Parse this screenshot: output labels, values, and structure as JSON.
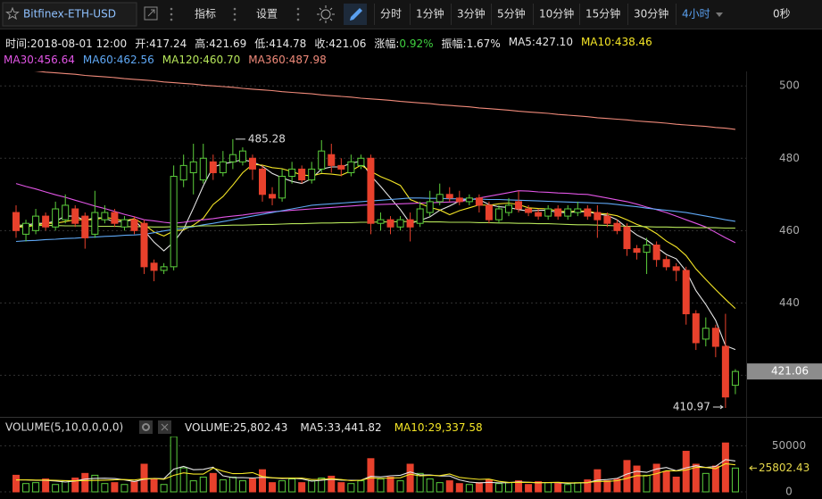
{
  "toolbar": {
    "symbol": "Bitfinex-ETH-USD",
    "indicators": "指标",
    "settings": "设置",
    "intervals": [
      "分时",
      "1分钟",
      "3分钟",
      "5分钟",
      "10分钟",
      "15分钟",
      "30分钟"
    ],
    "active_interval": "4小时",
    "countdown": "0秒"
  },
  "info": {
    "time_label": "时间:",
    "time": "2018-08-01 12:00",
    "open_label": "开:",
    "high_label": "高:",
    "low_label": "低:",
    "close_label": "收:",
    "change_label": "涨幅:",
    "change": "0.92%",
    "amplitude_label": "振幅:",
    "amplitude": "1.67%",
    "ma_labels": [
      "MA5:427.10",
      "MA10:438.46",
      "MA30:456.64",
      "MA60:462.56",
      "MA120:460.70",
      "MA360:487.98"
    ]
  },
  "volume_header": {
    "title": "VOLUME(5,10,0,0,0,0)",
    "items": [
      "VOLUME:25,802.43",
      "MA5:33,441.82",
      "MA10:29,337.58"
    ]
  },
  "chart_data": {
    "type": "candlestick",
    "up_color": "#5ccf3c",
    "down_color": "#e8412c",
    "ylim": [
      409,
      504
    ],
    "yticks": [
      420,
      440,
      460,
      480,
      500
    ],
    "grid": true,
    "open": [
      465,
      459,
      460,
      464,
      461,
      463,
      466,
      464,
      459,
      463,
      465,
      461,
      463,
      462,
      451,
      449,
      450,
      474,
      476,
      474,
      479,
      476,
      479,
      479,
      480,
      477,
      470,
      469,
      475,
      477,
      474,
      477,
      481,
      478,
      476,
      478,
      480,
      462,
      463,
      461,
      463,
      462,
      465,
      468,
      470,
      469,
      468,
      469,
      467,
      463,
      465,
      468,
      466,
      465,
      464,
      466,
      464,
      465,
      466,
      465,
      464,
      462,
      461,
      455,
      454,
      456,
      452,
      450,
      449,
      437,
      430,
      433,
      428,
      417.24
    ],
    "high": [
      467,
      463,
      466,
      465,
      468,
      470,
      467,
      465,
      471,
      467,
      466,
      464,
      464,
      463,
      452,
      451,
      478,
      481,
      484,
      484,
      481,
      482,
      485.28,
      483,
      481,
      478,
      472,
      477,
      479,
      478,
      479,
      485,
      484,
      480,
      481,
      481,
      481,
      465,
      464,
      464,
      465,
      468,
      471,
      473,
      472,
      471,
      470,
      470,
      468,
      467,
      469,
      471,
      467,
      466,
      467,
      467,
      467,
      468,
      467,
      467,
      465,
      463,
      462,
      456,
      458,
      457,
      453,
      451,
      450,
      438,
      436,
      434,
      437,
      421.69
    ],
    "low": [
      458,
      457,
      459,
      460,
      460,
      462,
      461,
      455,
      458,
      462,
      461,
      460,
      459,
      448,
      446,
      448,
      449,
      472,
      470,
      473,
      474,
      475,
      477,
      478,
      474,
      468,
      467,
      468,
      473,
      473,
      473,
      476,
      476,
      475,
      475,
      477,
      459,
      460,
      459,
      460,
      457,
      461,
      464,
      467,
      468,
      467,
      467,
      465,
      462,
      462,
      464,
      465,
      464,
      463,
      463,
      463,
      463,
      464,
      463,
      458,
      461,
      459,
      453,
      452,
      448,
      450,
      449,
      446,
      434,
      427,
      428,
      425,
      410.97,
      414.78
    ],
    "close": [
      460,
      462,
      464,
      461,
      466,
      467,
      462,
      458,
      465,
      465,
      462,
      463,
      460,
      450,
      449,
      450,
      475,
      478,
      479,
      480,
      476,
      479,
      481,
      482,
      477,
      470,
      469,
      475,
      477,
      474,
      477,
      482,
      478,
      477,
      479,
      480,
      462,
      463,
      461,
      463,
      461,
      466,
      468,
      470,
      469,
      468,
      469,
      467,
      463,
      466,
      467,
      466,
      465,
      464,
      466,
      464,
      466,
      466,
      464,
      463,
      462,
      460,
      455,
      454,
      456,
      452,
      450,
      449,
      437,
      429,
      433,
      428,
      414,
      421.06
    ],
    "series": [
      {
        "color": "#e6e6e6",
        "values": [
          461,
          461.5,
          462,
          462,
          462.6,
          464,
          464,
          462.8,
          463.6,
          463.4,
          462.4,
          462.6,
          463,
          460,
          456.8,
          454.4,
          456.8,
          460.4,
          466.2,
          472.4,
          477.6,
          478.4,
          479,
          479.6,
          479,
          477.8,
          475.8,
          474.6,
          473.6,
          473,
          474.4,
          477,
          477.6,
          477.6,
          478.6,
          479.2,
          475.2,
          472.2,
          469,
          465.8,
          462,
          462.8,
          463.8,
          465.6,
          466.8,
          468.2,
          468.8,
          468.6,
          467.2,
          466.6,
          466.4,
          465.8,
          465.4,
          465.6,
          465.6,
          465,
          465,
          465.2,
          465.2,
          464.6,
          464.2,
          463,
          460.8,
          458.8,
          457.4,
          455.4,
          453.4,
          452.2,
          448.8,
          443.4,
          439.6,
          435.2,
          428.2,
          427.1
        ]
      },
      {
        "color": "#f5e626",
        "values": [
          461,
          461,
          461.5,
          462,
          462,
          462.5,
          463,
          463,
          463,
          463.7,
          463.2,
          462.7,
          463.3,
          461.7,
          459.6,
          458.5,
          459.9,
          460.2,
          461.5,
          463.4,
          467.2,
          469.4,
          472.6,
          476,
          478.3,
          478.1,
          477.4,
          477.1,
          476.3,
          475.4,
          475.1,
          475.8,
          475.6,
          475.3,
          476.5,
          478.1,
          476.4,
          474.9,
          473.8,
          472.5,
          468.6,
          467.5,
          466.4,
          465.7,
          464.4,
          465.5,
          466.3,
          467.1,
          467,
          467.4,
          467.6,
          467.2,
          466.3,
          466.1,
          466,
          465.4,
          465.2,
          465.4,
          465.4,
          464.8,
          464.6,
          464.1,
          463,
          461.7,
          460.8,
          459.2,
          457.1,
          455.5,
          453.1,
          449.4,
          446.5,
          443.7,
          441,
          438.46
        ]
      },
      {
        "color": "#e255e6",
        "values": [
          473,
          472.2,
          471.5,
          470.7,
          469.9,
          469.2,
          468.4,
          467.6,
          466.8,
          466.1,
          465.3,
          464.5,
          463.8,
          463,
          462.7,
          462.3,
          462,
          462.3,
          462.7,
          463,
          463.3,
          463.7,
          464,
          464.3,
          464.7,
          465,
          465.2,
          465.4,
          465.6,
          465.8,
          466,
          466.2,
          466.4,
          466.6,
          466.8,
          467,
          467.1,
          467.2,
          467.3,
          467.4,
          467.5,
          467.6,
          467.7,
          467.8,
          467.9,
          468,
          468.5,
          469,
          469.5,
          470,
          470.5,
          471,
          470.9,
          470.7,
          470.6,
          470.4,
          470.3,
          470.1,
          470,
          469.5,
          469,
          468.5,
          468,
          467.3,
          466.5,
          465.8,
          465,
          464,
          463,
          462,
          461,
          459.5,
          458,
          456.64
        ]
      },
      {
        "color": "#5fa8f5",
        "values": [
          457,
          457.2,
          457.3,
          457.5,
          457.6,
          457.8,
          457.9,
          458.1,
          458.2,
          458.4,
          458.5,
          458.7,
          458.8,
          459,
          459.4,
          459.9,
          460.3,
          460.7,
          461.1,
          461.6,
          462,
          462.5,
          463,
          463.5,
          464,
          464.5,
          465,
          465.5,
          466,
          466.5,
          467,
          467.2,
          467.4,
          467.6,
          467.8,
          468,
          468.2,
          468.4,
          468.6,
          468.8,
          469,
          469,
          468.9,
          468.9,
          468.8,
          468.8,
          468.7,
          468.7,
          468.6,
          468.6,
          468.5,
          468.4,
          468.3,
          468.2,
          468.1,
          468,
          467.9,
          467.8,
          467.7,
          467.6,
          467.5,
          467.2,
          466.9,
          466.6,
          466.2,
          465.9,
          465.6,
          465.3,
          465,
          464.5,
          464,
          463.5,
          463,
          462.56
        ]
      },
      {
        "color": "#b6e65a",
        "values": [
          461.5,
          461.5,
          461.4,
          461.4,
          461.4,
          461.3,
          461.3,
          461.3,
          461.2,
          461.2,
          461.2,
          461.1,
          461.1,
          461.1,
          461,
          461,
          461.1,
          461.1,
          461.2,
          461.3,
          461.3,
          461.4,
          461.5,
          461.5,
          461.6,
          461.7,
          461.7,
          461.8,
          461.9,
          461.9,
          462,
          462.1,
          462.1,
          462.2,
          462.2,
          462.3,
          462.3,
          462.4,
          462.4,
          462.5,
          462.5,
          462.5,
          462.4,
          462.4,
          462.3,
          462.3,
          462.3,
          462.2,
          462.2,
          462.1,
          462.1,
          462,
          462,
          461.9,
          461.9,
          461.8,
          461.7,
          461.6,
          461.6,
          461.5,
          461.4,
          461.3,
          461.2,
          461.2,
          461.1,
          461,
          461,
          460.9,
          460.9,
          460.8,
          460.8,
          460.8,
          460.7,
          460.7
        ]
      },
      {
        "color": "#f08a7a",
        "values": [
          504.5,
          504.3,
          504.1,
          503.8,
          503.6,
          503.4,
          503.2,
          502.9,
          502.7,
          502.5,
          502.3,
          502.0,
          501.8,
          501.6,
          501.4,
          501.1,
          500.9,
          500.7,
          500.5,
          500.2,
          500.0,
          499.8,
          499.6,
          499.3,
          499.1,
          498.9,
          498.7,
          498.4,
          498.2,
          498.0,
          497.8,
          497.5,
          497.3,
          497.1,
          496.9,
          496.6,
          496.4,
          496.2,
          496.0,
          495.7,
          495.5,
          495.3,
          495.1,
          494.8,
          494.6,
          494.4,
          494.2,
          493.9,
          493.7,
          493.5,
          493.3,
          493.0,
          492.8,
          492.6,
          492.4,
          492.1,
          491.9,
          491.7,
          491.5,
          491.2,
          491.0,
          490.8,
          490.6,
          490.3,
          490.1,
          489.9,
          489.7,
          489.4,
          489.2,
          489.0,
          488.8,
          488.5,
          488.3,
          487.98
        ]
      }
    ],
    "volume": {
      "ylim": [
        0,
        60000
      ],
      "yticks": [
        0,
        50000
      ],
      "values": [
        18000,
        9000,
        10000,
        14000,
        8000,
        12000,
        15000,
        20000,
        18000,
        9000,
        10000,
        8000,
        11000,
        30000,
        14000,
        8000,
        60000,
        26000,
        12000,
        16000,
        20000,
        13000,
        16000,
        12000,
        14000,
        24000,
        10000,
        12000,
        14000,
        10000,
        12000,
        15000,
        17000,
        10000,
        9000,
        12000,
        36000,
        14000,
        16000,
        12000,
        30000,
        20000,
        14000,
        10000,
        12000,
        9000,
        8000,
        10000,
        13000,
        9000,
        10000,
        12000,
        8000,
        11000,
        10000,
        9000,
        8000,
        10000,
        13000,
        24000,
        12000,
        14000,
        34000,
        28000,
        18000,
        30000,
        22000,
        16000,
        44000,
        30000,
        20000,
        28000,
        53000,
        25802.43
      ],
      "series": [
        {
          "color": "#e6e6e6",
          "values": [
            13000,
            13000,
            12500,
            12500,
            11800,
            10600,
            11800,
            13800,
            14600,
            14800,
            14400,
            13000,
            11200,
            13600,
            14600,
            14200,
            24600,
            27600,
            24000,
            24400,
            26800,
            17400,
            15400,
            15400,
            15000,
            15800,
            15200,
            14400,
            14800,
            14000,
            11600,
            12600,
            13600,
            12800,
            12600,
            12600,
            16800,
            16200,
            17400,
            18000,
            21600,
            18400,
            18400,
            17200,
            17200,
            13000,
            10600,
            9800,
            10400,
            9800,
            10000,
            10800,
            10400,
            10000,
            10200,
            10000,
            9200,
            9600,
            10000,
            12800,
            13400,
            14600,
            19400,
            22400,
            21200,
            24800,
            26400,
            22800,
            26000,
            28400,
            26400,
            27600,
            35000,
            33441.82
          ]
        },
        {
          "color": "#f5e626",
          "values": [
            13000,
            13000,
            12800,
            12800,
            12500,
            12200,
            12000,
            12200,
            12400,
            12700,
            13100,
            13400,
            12900,
            14200,
            14500,
            13600,
            17900,
            20600,
            19300,
            19300,
            25700,
            22500,
            19700,
            19900,
            20900,
            16600,
            15300,
            14900,
            14900,
            14900,
            13400,
            13500,
            14200,
            13400,
            12100,
            12600,
            15200,
            14500,
            15000,
            15300,
            19200,
            17300,
            17900,
            17600,
            19400,
            15700,
            14500,
            13500,
            13800,
            11400,
            10300,
            10300,
            10400,
            9900,
            10100,
            10400,
            9800,
            9800,
            10100,
            11400,
            11300,
            12100,
            14700,
            17600,
            17300,
            19700,
            22900,
            22600,
            23600,
            26600,
            26400,
            25200,
            30500,
            29337.58
          ]
        }
      ]
    }
  }
}
